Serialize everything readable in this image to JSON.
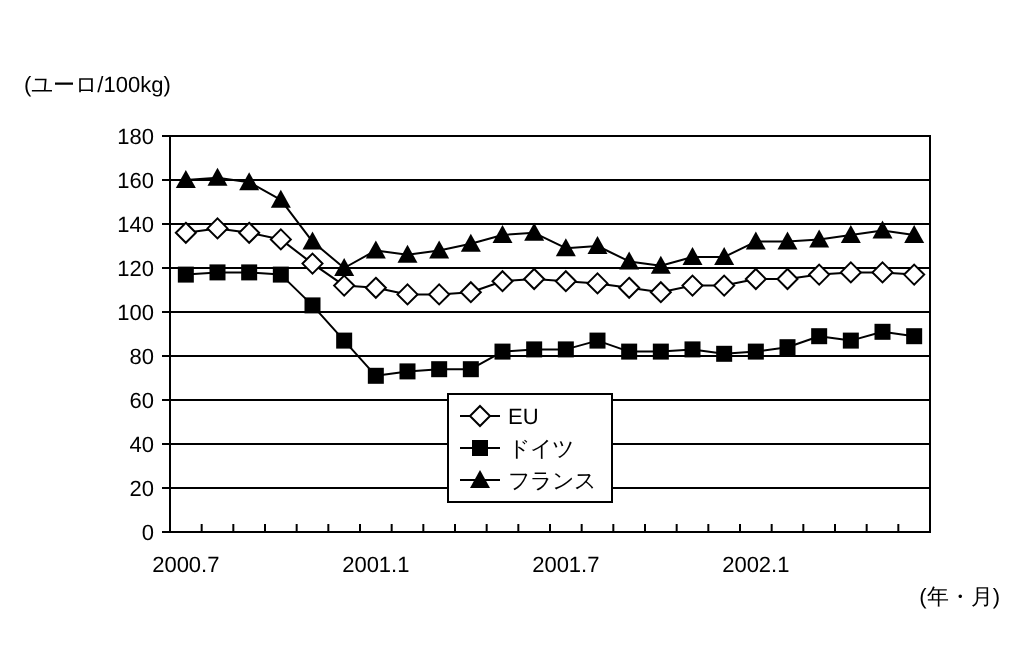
{
  "chart_data": {
    "type": "line",
    "ylabel": "(ユーロ/100kg)",
    "xlabel": "(年・月)",
    "categories": [
      "2000.7",
      null,
      null,
      null,
      null,
      null,
      "2001.1",
      null,
      null,
      null,
      null,
      null,
      "2001.7",
      null,
      null,
      null,
      null,
      null,
      "2002.1",
      null,
      null,
      null,
      null,
      null
    ],
    "ylim": [
      0,
      180
    ],
    "yticks": [
      0,
      20,
      40,
      60,
      80,
      100,
      120,
      140,
      160,
      180
    ],
    "grid": "y",
    "legend": "bottom",
    "series": [
      {
        "name": "EU",
        "color": "#000000",
        "marker": "diamond",
        "values": [
          136,
          138,
          136,
          133,
          122,
          112,
          111,
          108,
          108,
          109,
          114,
          115,
          114,
          113,
          111,
          109,
          112,
          112,
          115,
          115,
          117,
          118,
          118,
          117
        ]
      },
      {
        "name": "ドイツ",
        "color": "#000000",
        "marker": "square",
        "values": [
          117,
          118,
          118,
          117,
          103,
          87,
          71,
          73,
          74,
          74,
          82,
          83,
          83,
          87,
          82,
          82,
          83,
          81,
          82,
          84,
          89,
          87,
          91,
          89
        ]
      },
      {
        "name": "フランス",
        "color": "#000000",
        "marker": "triangle",
        "values": [
          160,
          161,
          159,
          151,
          132,
          120,
          128,
          126,
          128,
          131,
          135,
          136,
          129,
          130,
          123,
          121,
          125,
          125,
          132,
          132,
          133,
          135,
          137,
          135
        ]
      }
    ]
  }
}
